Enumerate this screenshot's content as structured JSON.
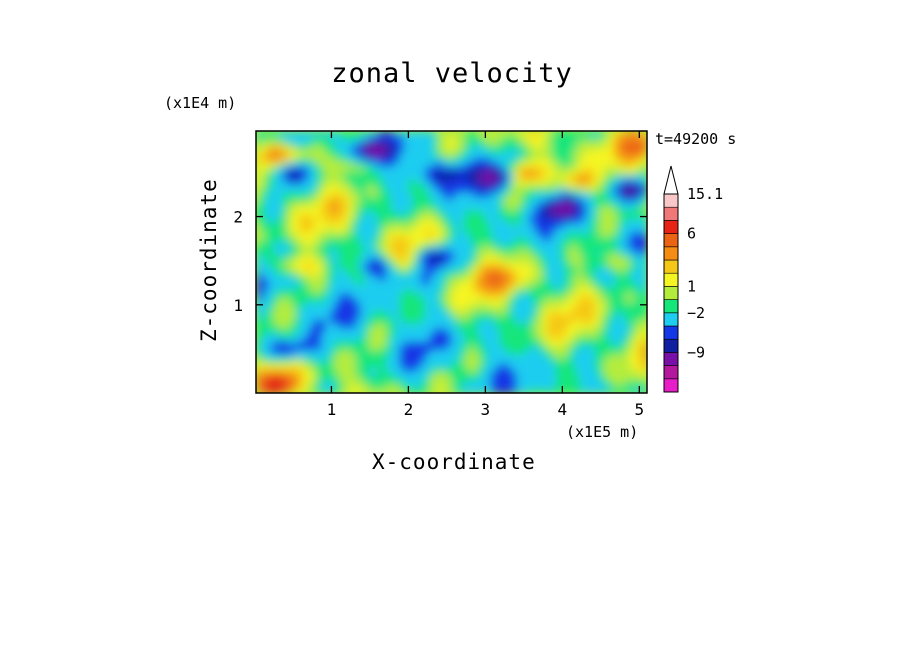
{
  "chart_data": {
    "type": "heatmap",
    "title": "zonal velocity",
    "xlabel": "X-coordinate",
    "ylabel": "Z-coordinate",
    "x_unit": "(x1E5 m)",
    "y_unit": "(x1E4 m)",
    "time_label": "t=49200 s",
    "xlim": [
      0.02,
      5.1
    ],
    "ylim": [
      0,
      2.97
    ],
    "x_ticks": [
      1,
      2,
      3,
      4,
      5
    ],
    "y_ticks": [
      1,
      2
    ],
    "colorbar": {
      "labels": [
        {
          "text": "15.1",
          "level": 15.1
        },
        {
          "text": "6",
          "level": 6
        },
        {
          "text": "1",
          "level": 1
        },
        {
          "text": "−2",
          "level": -2
        },
        {
          "text": "−9",
          "level": -9
        }
      ],
      "levels": [
        {
          "value": -15,
          "color": "#e81ec8"
        },
        {
          "value": -12,
          "color": "#b4189c"
        },
        {
          "value": -9,
          "color": "#7810a8"
        },
        {
          "value": -6,
          "color": "#1020a0"
        },
        {
          "value": -4,
          "color": "#1438e6"
        },
        {
          "value": -2,
          "color": "#1ecdf0"
        },
        {
          "value": 0,
          "color": "#14e67a"
        },
        {
          "value": 1,
          "color": "#b4ec3c"
        },
        {
          "value": 2,
          "color": "#f5f523"
        },
        {
          "value": 3,
          "color": "#f5c818"
        },
        {
          "value": 4,
          "color": "#f58c14"
        },
        {
          "value": 6,
          "color": "#eb6414"
        },
        {
          "value": 9,
          "color": "#e62314"
        },
        {
          "value": 12,
          "color": "#f07878"
        },
        {
          "value": 15.1,
          "color": "#f8c8c8"
        }
      ],
      "extend_max": true
    },
    "field_features": [
      {
        "x": 0.45,
        "z": 2.5,
        "value": -5
      },
      {
        "x": 1.5,
        "z": 2.75,
        "value": -6
      },
      {
        "x": 2.45,
        "z": 2.5,
        "value": -4
      },
      {
        "x": 3.15,
        "z": 2.45,
        "value": -5
      },
      {
        "x": 4.0,
        "z": 2.1,
        "value": -5
      },
      {
        "x": 4.9,
        "z": 2.3,
        "value": -7
      },
      {
        "x": 1.6,
        "z": 1.45,
        "value": -5
      },
      {
        "x": 2.35,
        "z": 1.55,
        "value": -6
      },
      {
        "x": 2.0,
        "z": 1.3,
        "value": -2
      },
      {
        "x": 0.4,
        "z": 2.7,
        "value": 4
      },
      {
        "x": 1.3,
        "z": 2.6,
        "value": 3
      },
      {
        "x": 3.5,
        "z": 2.5,
        "value": 5
      },
      {
        "x": 4.2,
        "z": 2.4,
        "value": 5
      },
      {
        "x": 5.0,
        "z": 2.8,
        "value": 5
      },
      {
        "x": 0.5,
        "z": 1.45,
        "value": 4
      },
      {
        "x": 4.8,
        "z": 1.5,
        "value": 4
      },
      {
        "x": 3.2,
        "z": 1.3,
        "value": 3
      },
      {
        "x": 0.3,
        "z": 0.1,
        "value": 9
      },
      {
        "x": 0.45,
        "z": 0.5,
        "value": -4
      }
    ]
  }
}
